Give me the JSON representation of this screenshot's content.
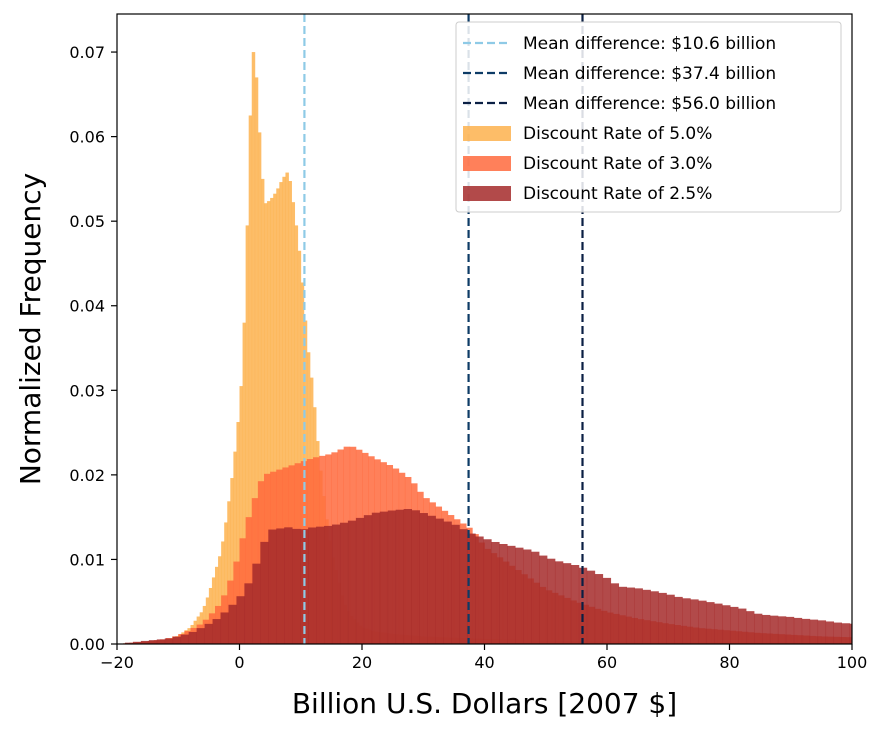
{
  "chart_data": {
    "type": "histogram",
    "xlabel": "Billion U.S. Dollars [2007 $]",
    "ylabel": "Normalized Frequency",
    "xlim": [
      -20,
      100
    ],
    "ylim": [
      0,
      0.0745
    ],
    "xticks": [
      -20,
      0,
      20,
      40,
      60,
      80,
      100
    ],
    "xtick_labels": [
      "−20",
      "0",
      "20",
      "40",
      "60",
      "80",
      "100"
    ],
    "yticks": [
      0.0,
      0.01,
      0.02,
      0.03,
      0.04,
      0.05,
      0.06,
      0.07
    ],
    "ytick_labels": [
      "0.00",
      "0.01",
      "0.02",
      "0.03",
      "0.04",
      "0.05",
      "0.06",
      "0.07"
    ],
    "grid": false,
    "legend_position": "top-right",
    "lines": [
      {
        "name": "Mean difference: $10.6 billion",
        "x": 10.6,
        "color": "#8ecae6",
        "style": "dashed"
      },
      {
        "name": "Mean difference: $37.4 billion",
        "x": 37.4,
        "color": "#0d3b66",
        "style": "dashed"
      },
      {
        "name": "Mean difference: $56.0 billion",
        "x": 56.0,
        "color": "#0a1f44",
        "style": "dashed"
      }
    ],
    "series": [
      {
        "name": "Discount Rate of 5.0%",
        "color": "#fdb14d",
        "bin_width": 0.5,
        "points": [
          [
            -20,
            0
          ],
          [
            -12,
            0.0004
          ],
          [
            -10,
            0.001
          ],
          [
            -8,
            0.002
          ],
          [
            -6,
            0.004
          ],
          [
            -5,
            0.006
          ],
          [
            -4,
            0.0085
          ],
          [
            -3,
            0.011
          ],
          [
            -2,
            0.0155
          ],
          [
            -1,
            0.021
          ],
          [
            0,
            0.028
          ],
          [
            0.5,
            0.033
          ],
          [
            1,
            0.043
          ],
          [
            1.5,
            0.056
          ],
          [
            2,
            0.069
          ],
          [
            2.5,
            0.071
          ],
          [
            3,
            0.063
          ],
          [
            3.5,
            0.058
          ],
          [
            4,
            0.052
          ],
          [
            5,
            0.0525
          ],
          [
            6,
            0.0535
          ],
          [
            7,
            0.055
          ],
          [
            8,
            0.056
          ],
          [
            9,
            0.051
          ],
          [
            10,
            0.045
          ],
          [
            11,
            0.036
          ],
          [
            12,
            0.03
          ],
          [
            13,
            0.022
          ],
          [
            14,
            0.016
          ],
          [
            15,
            0.011
          ],
          [
            16,
            0.008
          ],
          [
            17,
            0.005
          ],
          [
            18,
            0.0035
          ],
          [
            20,
            0.002
          ],
          [
            22,
            0.0015
          ],
          [
            25,
            0.0012
          ],
          [
            30,
            0.0009
          ],
          [
            40,
            0.0006
          ],
          [
            50,
            0.0004
          ],
          [
            60,
            0.0003
          ],
          [
            80,
            0.0002
          ],
          [
            100,
            0.0001
          ]
        ]
      },
      {
        "name": "Discount Rate of 3.0%",
        "color": "#ff6a3d",
        "bin_width": 1.0,
        "points": [
          [
            -20,
            0
          ],
          [
            -15,
            0.0003
          ],
          [
            -12,
            0.0006
          ],
          [
            -10,
            0.001
          ],
          [
            -8,
            0.0017
          ],
          [
            -6,
            0.0025
          ],
          [
            -4,
            0.004
          ],
          [
            -3,
            0.005
          ],
          [
            -2,
            0.0065
          ],
          [
            -1,
            0.0085
          ],
          [
            0,
            0.011
          ],
          [
            1,
            0.014
          ],
          [
            2,
            0.016
          ],
          [
            3,
            0.0185
          ],
          [
            4,
            0.02
          ],
          [
            6,
            0.0205
          ],
          [
            8,
            0.021
          ],
          [
            10,
            0.0215
          ],
          [
            12,
            0.022
          ],
          [
            15,
            0.0225
          ],
          [
            18,
            0.0235
          ],
          [
            20,
            0.0228
          ],
          [
            22,
            0.022
          ],
          [
            25,
            0.021
          ],
          [
            28,
            0.0195
          ],
          [
            30,
            0.0175
          ],
          [
            32,
            0.0165
          ],
          [
            35,
            0.015
          ],
          [
            38,
            0.0135
          ],
          [
            40,
            0.0115
          ],
          [
            42,
            0.0105
          ],
          [
            45,
            0.009
          ],
          [
            48,
            0.0075
          ],
          [
            50,
            0.0065
          ],
          [
            55,
            0.005
          ],
          [
            60,
            0.0038
          ],
          [
            65,
            0.003
          ],
          [
            70,
            0.0024
          ],
          [
            75,
            0.0019
          ],
          [
            80,
            0.0016
          ],
          [
            85,
            0.0013
          ],
          [
            90,
            0.0011
          ],
          [
            95,
            0.0009
          ],
          [
            100,
            0.0008
          ]
        ]
      },
      {
        "name": "Discount Rate of 2.5%",
        "color": "#a52a2a",
        "bin_width": 1.3,
        "points": [
          [
            -20,
            0
          ],
          [
            -15,
            0.0004
          ],
          [
            -12,
            0.0006
          ],
          [
            -10,
            0.0009
          ],
          [
            -8,
            0.0013
          ],
          [
            -6,
            0.002
          ],
          [
            -4,
            0.0028
          ],
          [
            -2,
            0.004
          ],
          [
            0,
            0.0055
          ],
          [
            1,
            0.0065
          ],
          [
            2,
            0.008
          ],
          [
            3,
            0.01
          ],
          [
            4,
            0.012
          ],
          [
            5,
            0.0135
          ],
          [
            8,
            0.0138
          ],
          [
            10,
            0.0135
          ],
          [
            12,
            0.0138
          ],
          [
            15,
            0.014
          ],
          [
            18,
            0.0145
          ],
          [
            20,
            0.015
          ],
          [
            22,
            0.0155
          ],
          [
            25,
            0.0158
          ],
          [
            28,
            0.016
          ],
          [
            30,
            0.0155
          ],
          [
            32,
            0.015
          ],
          [
            35,
            0.0142
          ],
          [
            38,
            0.013
          ],
          [
            40,
            0.0125
          ],
          [
            42,
            0.012
          ],
          [
            45,
            0.0115
          ],
          [
            48,
            0.011
          ],
          [
            50,
            0.0103
          ],
          [
            52,
            0.0098
          ],
          [
            55,
            0.0093
          ],
          [
            58,
            0.0085
          ],
          [
            60,
            0.0078
          ],
          [
            62,
            0.0068
          ],
          [
            65,
            0.0066
          ],
          [
            68,
            0.0062
          ],
          [
            70,
            0.0059
          ],
          [
            72,
            0.0055
          ],
          [
            75,
            0.0052
          ],
          [
            78,
            0.0048
          ],
          [
            80,
            0.0045
          ],
          [
            82,
            0.0042
          ],
          [
            85,
            0.0035
          ],
          [
            88,
            0.0033
          ],
          [
            90,
            0.0032
          ],
          [
            92,
            0.003
          ],
          [
            95,
            0.0028
          ],
          [
            98,
            0.0025
          ],
          [
            100,
            0.0024
          ]
        ]
      }
    ]
  }
}
